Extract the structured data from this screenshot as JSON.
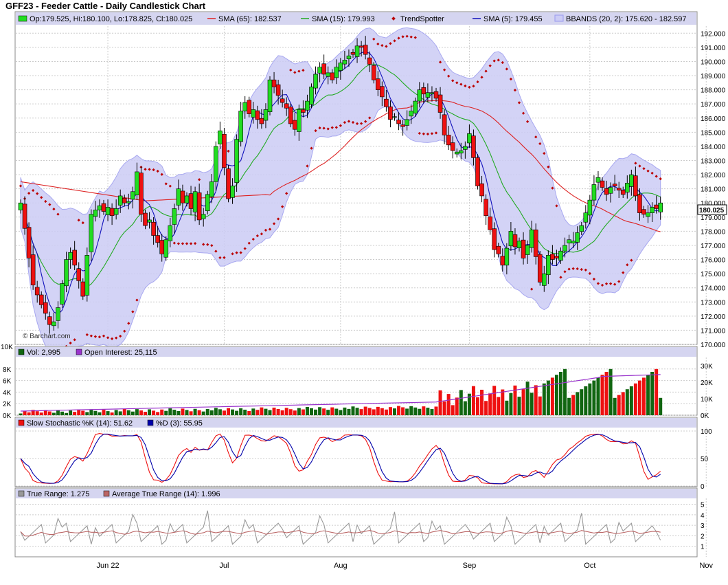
{
  "title": "GFF23 - Feeder Cattle - Daily Candlestick Chart",
  "watermark": "© Barchart.com",
  "colors": {
    "panel_bg": "#ffffff",
    "grid": "#cccccc",
    "legend_bg": "#d5d5f0",
    "up": "#22dd22",
    "down": "#ee1111",
    "sma65": "#dd2222",
    "sma15": "#22aa22",
    "sma5": "#1111bb",
    "trend": "#bb0000",
    "band_fill": "#ccccf5",
    "band_line": "#9999ee",
    "vol_up": "#116611",
    "vol_down": "#ee1111",
    "oi": "#9933cc",
    "stoch_k": "#ee1111",
    "stoch_d": "#0000aa",
    "tr": "#999999",
    "atr": "#bb6666"
  },
  "price_panel": {
    "legend": [
      {
        "label": "Op:179.525, Hi:180.100, Lo:178.825, Cl:180.025",
        "swatch": "box",
        "color": "#22dd22"
      },
      {
        "label": "SMA (65): 182.537",
        "swatch": "line",
        "color": "#dd2222"
      },
      {
        "label": "SMA (15): 179.993",
        "swatch": "line",
        "color": "#22aa22"
      },
      {
        "label": "TrendSpotter",
        "swatch": "dot",
        "color": "#bb0000"
      },
      {
        "label": "SMA (5): 179.455",
        "swatch": "line",
        "color": "#1111bb"
      },
      {
        "label": "BBANDS (20, 2): 175.620 - 182.597",
        "swatch": "band",
        "color": "#9999ee"
      }
    ],
    "y_ticks": [
      "170.000",
      "171.000",
      "172.000",
      "173.000",
      "174.000",
      "175.000",
      "176.000",
      "177.000",
      "178.000",
      "179.000",
      "180.000",
      "181.000",
      "182.000",
      "183.000",
      "184.000",
      "185.000",
      "186.000",
      "187.000",
      "188.000",
      "189.000",
      "190.000",
      "191.000",
      "192.000"
    ],
    "last_price_label": "180.025"
  },
  "volume_panel": {
    "legend": [
      {
        "label": "Vol: 2,995",
        "color": "#116611"
      },
      {
        "label": "Open Interest: 25,115",
        "color": "#9933cc"
      }
    ],
    "left_top_label": "10K",
    "left_ticks": [
      "0K",
      "2K",
      "4K",
      "6K",
      "8K"
    ],
    "right_ticks": [
      "0K",
      "10K",
      "20K",
      "30K"
    ]
  },
  "stoch_panel": {
    "legend": [
      {
        "label": "Slow Stochastic %K (14): 51.62",
        "color": "#ee1111"
      },
      {
        "label": "%D (3): 55.95",
        "color": "#0000aa"
      }
    ],
    "right_ticks": [
      "0",
      "50",
      "100"
    ]
  },
  "tr_panel": {
    "legend": [
      {
        "label": "True Range: 1.275",
        "color": "#999999"
      },
      {
        "label": "Average True Range (14): 1.996",
        "color": "#bb6666"
      }
    ],
    "right_ticks": [
      "1",
      "2",
      "3",
      "4",
      "5"
    ]
  },
  "x_axis": {
    "labels": [
      {
        "label": "Jun 22",
        "index": 21
      },
      {
        "label": "Jul",
        "index": 49
      },
      {
        "label": "Aug",
        "index": 77
      },
      {
        "label": "Sep",
        "index": 108
      },
      {
        "label": "Oct",
        "index": 137
      },
      {
        "label": "Nov",
        "index": 165
      }
    ]
  },
  "chart_data": {
    "type": "candlestick",
    "title": "GFF23 - Feeder Cattle - Daily Candlestick Chart",
    "ylim": [
      170,
      192.5
    ],
    "closes": [
      180.0,
      178.2,
      176.1,
      174.2,
      173.5,
      172.8,
      172.2,
      171.4,
      171.6,
      172.6,
      174.3,
      176.0,
      176.5,
      175.6,
      174.5,
      173.4,
      176.3,
      179.2,
      179.5,
      179.8,
      179.4,
      179.7,
      179.1,
      179.6,
      180.5,
      180.0,
      180.1,
      180.8,
      182.2,
      179.2,
      178.4,
      178.8,
      177.7,
      177.2,
      176.4,
      177.4,
      178.4,
      179.6,
      181.0,
      180.0,
      180.5,
      179.6,
      180.8,
      178.8,
      179.2,
      180.6,
      181.5,
      184.0,
      185.1,
      182.5,
      180.3,
      181.2,
      184.5,
      186.5,
      187.1,
      186.3,
      186.6,
      185.9,
      185.6,
      186.6,
      188.7,
      188.2,
      187.6,
      187.1,
      186.7,
      185.6,
      185.2,
      186.6,
      186.4,
      187.2,
      188.2,
      189.1,
      189.6,
      189.1,
      189.2,
      188.7,
      189.6,
      189.9,
      190.1,
      190.4,
      190.5,
      191.1,
      191.0,
      190.5,
      189.8,
      188.7,
      188.0,
      187.5,
      186.8,
      185.9,
      186.1,
      185.6,
      185.4,
      185.9,
      186.5,
      187.2,
      188.0,
      187.7,
      187.8,
      187.8,
      187.4,
      186.4,
      184.8,
      184.1,
      183.7,
      183.6,
      183.7,
      184.0,
      184.9,
      183.2,
      181.2,
      180.5,
      179.1,
      178.1,
      176.7,
      176.4,
      175.6,
      176.8,
      178.0,
      176.9,
      177.3,
      176.1,
      177.0,
      178.1,
      176.2,
      174.4,
      175.0,
      176.3,
      176.0,
      176.1,
      176.6,
      177.0,
      177.4,
      177.3,
      177.9,
      178.4,
      179.3,
      180.2,
      181.3,
      181.8,
      181.1,
      180.6,
      181.1,
      181.2,
      180.9,
      180.6,
      181.4,
      182.0,
      180.5,
      179.3,
      179.2,
      179.3,
      179.7,
      179.6,
      180.0
    ],
    "volume_max": 10000,
    "oi_max": 35000,
    "stoch_range": [
      0,
      100
    ],
    "true_range_max": 5.5
  }
}
